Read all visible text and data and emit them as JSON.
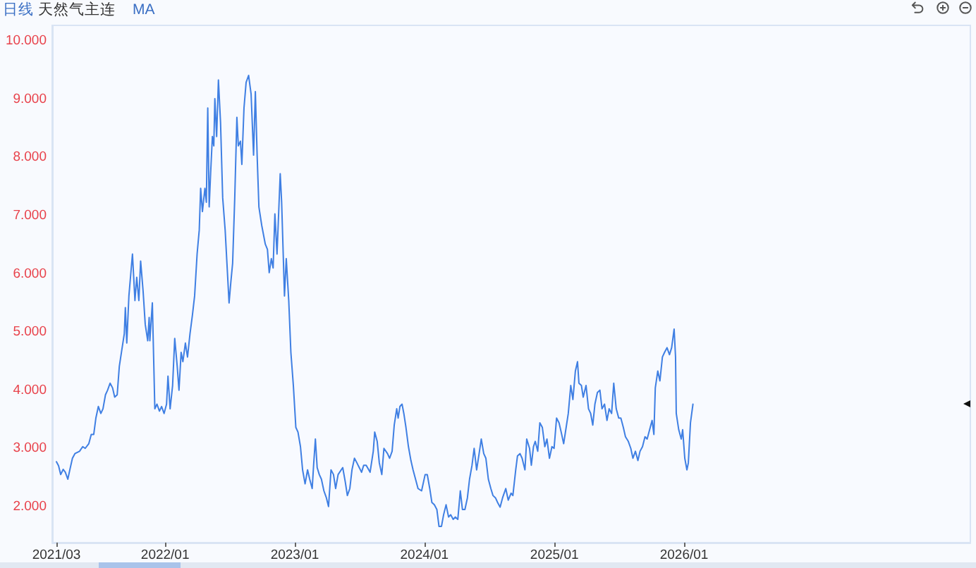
{
  "chart_data": {
    "type": "line",
    "title": "天然气主连",
    "annotations": [
      "日线",
      "MA"
    ],
    "x": [
      "2021-03-01",
      "2021-03-07",
      "2021-03-13",
      "2021-03-20",
      "2021-03-26",
      "2021-04-02",
      "2021-04-08",
      "2021-04-15",
      "2021-04-22",
      "2021-05-05",
      "2021-05-14",
      "2021-05-21",
      "2021-05-31",
      "2021-06-07",
      "2021-06-14",
      "2021-06-20",
      "2021-06-27",
      "2021-07-04",
      "2021-07-10",
      "2021-07-17",
      "2021-07-23",
      "2021-07-30",
      "2021-08-06",
      "2021-08-12",
      "2021-08-19",
      "2021-08-25",
      "2021-09-01",
      "2021-09-08",
      "2021-09-11",
      "2021-09-15",
      "2021-09-21",
      "2021-10-01",
      "2021-10-08",
      "2021-10-13",
      "2021-10-19",
      "2021-10-24",
      "2021-10-31",
      "2021-11-06",
      "2021-11-13",
      "2021-11-17",
      "2021-11-19",
      "2021-11-26",
      "2021-12-03",
      "2021-12-09",
      "2021-12-16",
      "2021-12-22",
      "2021-12-29",
      "2022-01-05",
      "2022-01-09",
      "2022-01-15",
      "2022-01-22",
      "2022-01-28",
      "2022-02-04",
      "2022-02-09",
      "2022-02-15",
      "2022-02-20",
      "2022-02-27",
      "2022-03-05",
      "2022-03-12",
      "2022-03-19",
      "2022-03-25",
      "2022-04-01",
      "2022-04-07",
      "2022-04-11",
      "2022-04-16",
      "2022-04-23",
      "2022-04-27",
      "2022-05-01",
      "2022-05-05",
      "2022-05-09",
      "2022-05-14",
      "2022-05-18",
      "2022-05-21",
      "2022-05-26",
      "2022-05-31",
      "2022-06-06",
      "2022-06-12",
      "2022-06-19",
      "2022-06-24",
      "2022-06-30",
      "2022-07-05",
      "2022-07-10",
      "2022-07-16",
      "2022-07-22",
      "2022-07-26",
      "2022-08-01",
      "2022-08-05",
      "2022-08-11",
      "2022-08-17",
      "2022-08-24",
      "2022-08-31",
      "2022-09-07",
      "2022-09-12",
      "2022-09-17",
      "2022-09-22",
      "2022-09-30",
      "2022-10-10",
      "2022-10-16",
      "2022-10-21",
      "2022-10-27",
      "2022-11-01",
      "2022-11-06",
      "2022-11-12",
      "2022-11-21",
      "2022-11-25",
      "2022-12-03",
      "2022-12-08",
      "2022-12-15",
      "2022-12-21",
      "2022-12-28",
      "2023-01-04",
      "2023-01-10",
      "2023-01-17",
      "2023-01-23",
      "2023-01-30",
      "2023-02-06",
      "2023-02-12",
      "2023-02-19",
      "2023-02-23",
      "2023-02-28",
      "2023-03-05",
      "2023-03-11",
      "2023-03-17",
      "2023-03-24",
      "2023-03-31",
      "2023-04-06",
      "2023-04-13",
      "2023-04-20",
      "2023-04-26",
      "2023-05-03",
      "2023-05-16",
      "2023-05-23",
      "2023-05-29",
      "2023-06-05",
      "2023-06-11",
      "2023-06-18",
      "2023-06-25",
      "2023-07-08",
      "2023-07-14",
      "2023-07-21",
      "2023-08-01",
      "2023-08-10",
      "2023-08-14",
      "2023-08-21",
      "2023-08-27",
      "2023-09-03",
      "2023-09-09",
      "2023-09-19",
      "2023-09-25",
      "2023-10-02",
      "2023-10-08",
      "2023-10-15",
      "2023-10-19",
      "2023-10-24",
      "2023-10-30",
      "2023-11-04",
      "2023-11-10",
      "2023-11-17",
      "2023-11-24",
      "2023-11-30",
      "2023-12-14",
      "2023-12-24",
      "2024-01-03",
      "2024-01-09",
      "2024-01-16",
      "2024-01-22",
      "2024-01-29",
      "2024-02-05",
      "2024-02-11",
      "2024-02-18",
      "2024-02-24",
      "2024-03-02",
      "2024-03-09",
      "2024-03-15",
      "2024-03-22",
      "2024-03-28",
      "2024-04-04",
      "2024-04-11",
      "2024-04-17",
      "2024-04-24",
      "2024-05-01",
      "2024-05-07",
      "2024-05-14",
      "2024-05-20",
      "2024-05-27",
      "2024-06-03",
      "2024-06-09",
      "2024-06-16",
      "2024-06-22",
      "2024-06-29",
      "2024-07-06",
      "2024-07-12",
      "2024-07-19",
      "2024-07-25",
      "2024-08-01",
      "2024-08-08",
      "2024-08-17",
      "2024-08-24",
      "2024-09-01",
      "2024-09-06",
      "2024-09-14",
      "2024-09-19",
      "2024-09-26",
      "2024-10-02",
      "2024-10-10",
      "2024-10-15",
      "2024-10-23",
      "2024-10-28",
      "2024-11-03",
      "2024-11-08",
      "2024-11-15",
      "2024-11-21",
      "2024-11-28",
      "2024-12-05",
      "2024-12-11",
      "2024-12-18",
      "2024-12-25",
      "2024-12-31",
      "2025-01-07",
      "2025-01-14",
      "2025-01-20",
      "2025-01-27",
      "2025-02-03",
      "2025-02-09",
      "2025-02-16",
      "2025-02-22",
      "2025-03-01",
      "2025-03-07",
      "2025-03-11",
      "2025-03-18",
      "2025-03-23",
      "2025-03-31",
      "2025-04-07",
      "2025-04-13",
      "2025-04-19",
      "2025-04-25",
      "2025-05-02",
      "2025-05-09",
      "2025-05-15",
      "2025-05-22",
      "2025-05-29",
      "2025-06-04",
      "2025-06-11",
      "2025-06-17",
      "2025-06-24",
      "2025-07-01",
      "2025-07-07",
      "2025-07-14",
      "2025-07-20",
      "2025-07-28",
      "2025-08-04",
      "2025-08-10",
      "2025-08-17",
      "2025-08-24",
      "2025-08-30",
      "2025-09-06",
      "2025-09-13",
      "2025-09-19",
      "2025-09-26",
      "2025-10-03",
      "2025-10-08",
      "2025-10-12",
      "2025-10-19",
      "2025-10-25",
      "2025-11-01",
      "2025-11-07",
      "2025-11-14",
      "2025-11-21",
      "2025-11-27",
      "2025-12-04",
      "2025-12-08",
      "2025-12-10",
      "2025-12-17",
      "2025-12-24",
      "2025-12-28",
      "2026-01-03",
      "2026-01-09",
      "2026-01-13",
      "2026-01-19",
      "2026-01-26"
    ],
    "series": [
      {
        "color": "#3f7fe3",
        "values": [
          2.77,
          2.7,
          2.55,
          2.64,
          2.59,
          2.47,
          2.64,
          2.83,
          2.91,
          2.95,
          3.03,
          3.0,
          3.08,
          3.24,
          3.24,
          3.52,
          3.72,
          3.6,
          3.68,
          3.92,
          4.0,
          4.12,
          4.04,
          3.88,
          3.92,
          4.41,
          4.69,
          4.97,
          5.42,
          4.81,
          5.62,
          6.34,
          5.54,
          5.94,
          5.54,
          6.22,
          5.7,
          5.13,
          4.85,
          5.25,
          4.85,
          5.5,
          3.68,
          3.76,
          3.64,
          3.72,
          3.6,
          3.76,
          4.24,
          3.68,
          4.08,
          4.89,
          4.41,
          4.0,
          4.65,
          4.49,
          4.81,
          4.57,
          4.97,
          5.3,
          5.62,
          6.34,
          6.75,
          7.47,
          7.07,
          7.47,
          7.23,
          8.85,
          7.15,
          7.72,
          8.36,
          8.2,
          9.01,
          8.36,
          9.33,
          8.6,
          7.31,
          6.75,
          6.18,
          5.5,
          5.86,
          6.18,
          7.31,
          8.69,
          8.2,
          8.28,
          7.88,
          8.85,
          9.29,
          9.41,
          9.09,
          8.04,
          9.13,
          8.04,
          7.15,
          6.83,
          6.51,
          6.42,
          6.02,
          6.26,
          6.1,
          7.03,
          6.34,
          7.72,
          7.23,
          5.62,
          6.26,
          5.54,
          4.65,
          4.08,
          3.36,
          3.28,
          3.03,
          2.63,
          2.39,
          2.63,
          2.47,
          2.31,
          2.71,
          3.16,
          2.67,
          2.55,
          2.47,
          2.27,
          2.15,
          2.0,
          2.63,
          2.55,
          2.31,
          2.55,
          2.67,
          2.43,
          2.19,
          2.31,
          2.63,
          2.83,
          2.75,
          2.59,
          2.71,
          2.71,
          2.59,
          2.95,
          3.28,
          3.12,
          2.75,
          2.55,
          3.0,
          2.91,
          2.83,
          2.95,
          3.4,
          3.68,
          3.52,
          3.72,
          3.76,
          3.6,
          3.36,
          3.03,
          2.79,
          2.63,
          2.31,
          2.27,
          2.55,
          2.55,
          2.31,
          2.07,
          2.03,
          1.95,
          1.66,
          1.66,
          1.86,
          2.03,
          1.82,
          1.86,
          1.78,
          1.82,
          1.78,
          2.27,
          1.95,
          1.95,
          2.15,
          2.47,
          2.71,
          3.0,
          2.63,
          2.91,
          3.16,
          2.91,
          2.83,
          2.47,
          2.31,
          2.19,
          2.15,
          2.07,
          1.99,
          2.15,
          2.31,
          2.11,
          2.23,
          2.19,
          2.63,
          2.87,
          2.91,
          2.83,
          2.63,
          3.16,
          3.0,
          2.71,
          3.03,
          3.12,
          2.95,
          3.44,
          3.36,
          3.03,
          3.16,
          2.83,
          3.03,
          3.0,
          3.52,
          3.44,
          3.28,
          3.08,
          3.36,
          3.6,
          4.08,
          3.84,
          4.33,
          4.49,
          4.12,
          4.08,
          3.88,
          4.08,
          3.68,
          3.6,
          3.4,
          3.76,
          3.96,
          4.0,
          3.68,
          3.76,
          3.48,
          3.68,
          3.6,
          4.12,
          3.68,
          3.52,
          3.52,
          3.36,
          3.2,
          3.12,
          3.0,
          2.83,
          2.95,
          2.79,
          2.95,
          3.03,
          3.2,
          3.16,
          3.32,
          3.48,
          3.24,
          4.04,
          4.33,
          4.16,
          4.57,
          4.65,
          4.73,
          4.61,
          4.73,
          5.05,
          4.57,
          3.6,
          3.32,
          3.16,
          3.32,
          2.83,
          2.63,
          2.75,
          3.44,
          3.76
        ]
      }
    ],
    "xlim": [
      "2021-02-17",
      "2028-03-17"
    ],
    "xticks": [
      {
        "value": "2021-03",
        "label": "2021/03"
      },
      {
        "value": "2022-01",
        "label": "2022/01"
      },
      {
        "value": "2023-01",
        "label": "2023/01"
      },
      {
        "value": "2024-01",
        "label": "2024/01"
      },
      {
        "value": "2025-01",
        "label": "2025/01"
      },
      {
        "value": "2026-01",
        "label": "2026/01"
      }
    ],
    "ylim": [
      1.38,
      10.27
    ],
    "yticks": [
      {
        "value": 2,
        "label": "2.000"
      },
      {
        "value": 3,
        "label": "3.000"
      },
      {
        "value": 4,
        "label": "4.000"
      },
      {
        "value": 5,
        "label": "5.000"
      },
      {
        "value": 6,
        "label": "6.000"
      },
      {
        "value": 7,
        "label": "7.000"
      },
      {
        "value": 8,
        "label": "8.000"
      },
      {
        "value": 9,
        "label": "9.000"
      },
      {
        "value": 10,
        "label": "10.000"
      }
    ],
    "marker": "none",
    "line_style": "solid"
  }
}
